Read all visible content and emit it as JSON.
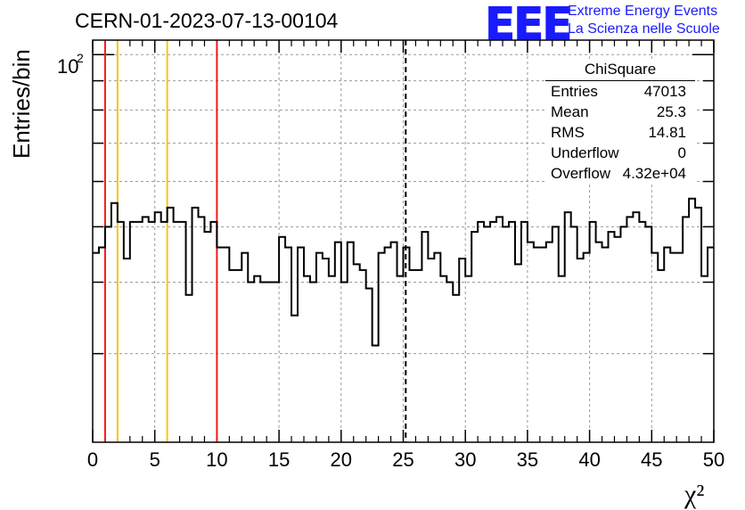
{
  "header": {
    "run_title": "CERN-01-2023-07-13-00104",
    "logo_mark": "EEE",
    "logo_line1": "Extreme Energy Events",
    "logo_line2": "La Scienza nelle Scuole"
  },
  "stats": {
    "title": "ChiSquare",
    "rows": [
      {
        "label": "Entries",
        "value": "47013"
      },
      {
        "label": "Mean",
        "value": "25.3"
      },
      {
        "label": "RMS",
        "value": "14.81"
      },
      {
        "label": "Underflow",
        "value": "0"
      },
      {
        "label": "Overflow",
        "value": "4.32e+04"
      }
    ]
  },
  "colors": {
    "histogram": "#000000",
    "red_marker": "#e8201a",
    "yellow_marker": "#f5c518",
    "cut_line": "#000000",
    "grid": "#999999"
  },
  "chart_data": {
    "type": "histogram",
    "title": "",
    "xlabel": "χ²",
    "ylabel": "Entries/bin",
    "xlim": [
      0,
      50
    ],
    "ylim": [
      21,
      106
    ],
    "y_scale": "log",
    "grid": true,
    "x_ticks": [
      0,
      5,
      10,
      15,
      20,
      25,
      30,
      35,
      40,
      45,
      50
    ],
    "y_tick_label_value": 100,
    "y_tick_label_text": "10",
    "y_tick_label_exp": "2",
    "bin_width": 0.5,
    "values": [
      45,
      46,
      50,
      55,
      51,
      44,
      51,
      51,
      52,
      51,
      53,
      51,
      54,
      51,
      51,
      38,
      54,
      52,
      49,
      51,
      46,
      46,
      42,
      42,
      45,
      40,
      41,
      40,
      40,
      40,
      48,
      46,
      35,
      46,
      41,
      40,
      45,
      44,
      41,
      47,
      40,
      47,
      43,
      42,
      39,
      31,
      45,
      46,
      47,
      41,
      46,
      42,
      42,
      49,
      44,
      45,
      41,
      40,
      38,
      44,
      41,
      49,
      51,
      50,
      51,
      52,
      50,
      51,
      43,
      51,
      47,
      46,
      46,
      47,
      50,
      41,
      53,
      50,
      44,
      45,
      51,
      47,
      46,
      49,
      48,
      50,
      52,
      53,
      51,
      50,
      45,
      42,
      46,
      45,
      45,
      52,
      56,
      54,
      41,
      46
    ],
    "vertical_lines": [
      {
        "x": 1,
        "color": "red"
      },
      {
        "x": 2,
        "color": "yellow"
      },
      {
        "x": 6,
        "color": "yellow"
      },
      {
        "x": 10,
        "color": "red"
      },
      {
        "x": 25.2,
        "color": "black",
        "style": "dashed"
      }
    ]
  }
}
